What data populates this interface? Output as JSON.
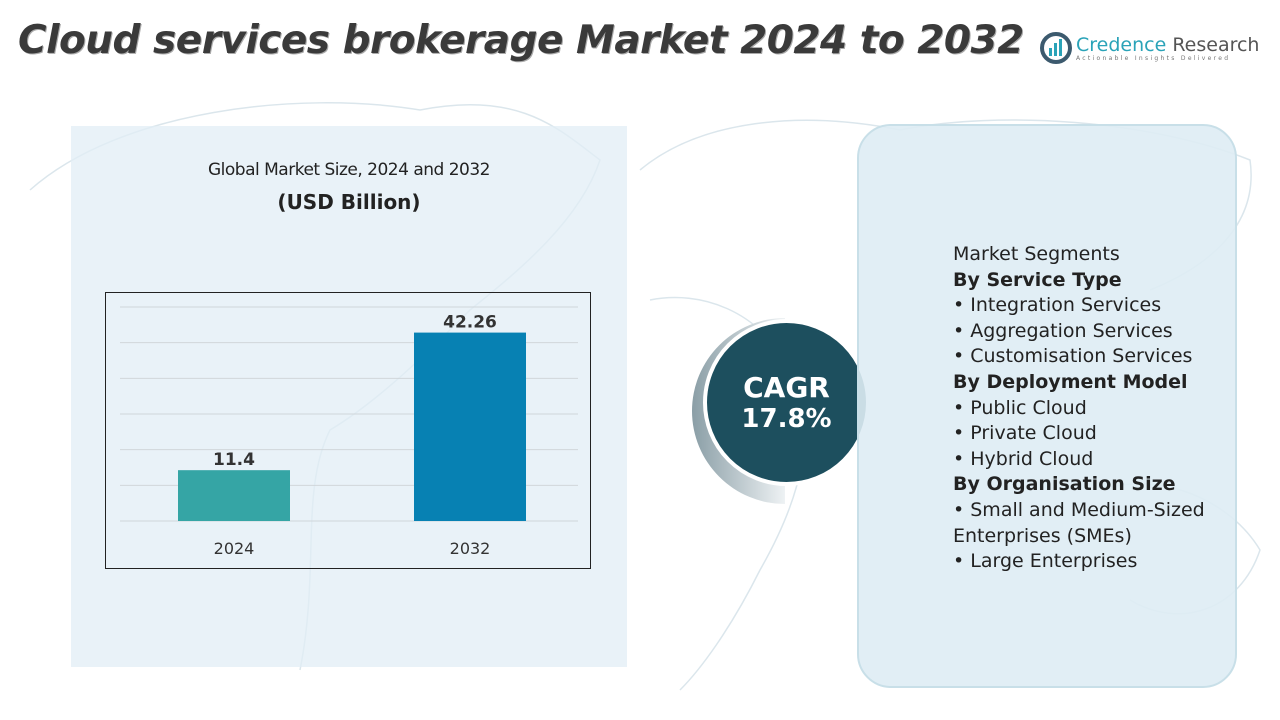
{
  "title": "Cloud services brokerage Market 2024 to 2032",
  "logo": {
    "name_part1": "Credence",
    "name_part2": " Research",
    "tagline": "Actionable Insights Delivered"
  },
  "chart_data": {
    "type": "bar",
    "title": "Global Market Size, 2024 and 2032",
    "subtitle": "(USD Billion)",
    "categories": [
      "2024",
      "2032"
    ],
    "values": [
      11.4,
      42.26
    ],
    "value_labels": [
      "11.4",
      "42.26"
    ],
    "colors": [
      "#35a5a5",
      "#0781b3"
    ],
    "ylim": [
      0,
      48
    ],
    "grid": true,
    "xlabel": "",
    "ylabel": ""
  },
  "cagr": {
    "label": "CAGR",
    "value": "17.8%"
  },
  "segments": {
    "heading": "Market Segments",
    "groups": [
      {
        "title": "By Service Type",
        "items": [
          "•  Integration Services",
          "•  Aggregation Services",
          "•  Customisation Services"
        ]
      },
      {
        "title": "By Deployment Model",
        "items": [
          "•  Public Cloud",
          "•  Private Cloud",
          "•  Hybrid Cloud"
        ]
      },
      {
        "title": "By Organisation Size",
        "items": [
          "•  Small and Medium-Sized Enterprises (SMEs)",
          "•  Large Enterprises"
        ]
      }
    ]
  }
}
